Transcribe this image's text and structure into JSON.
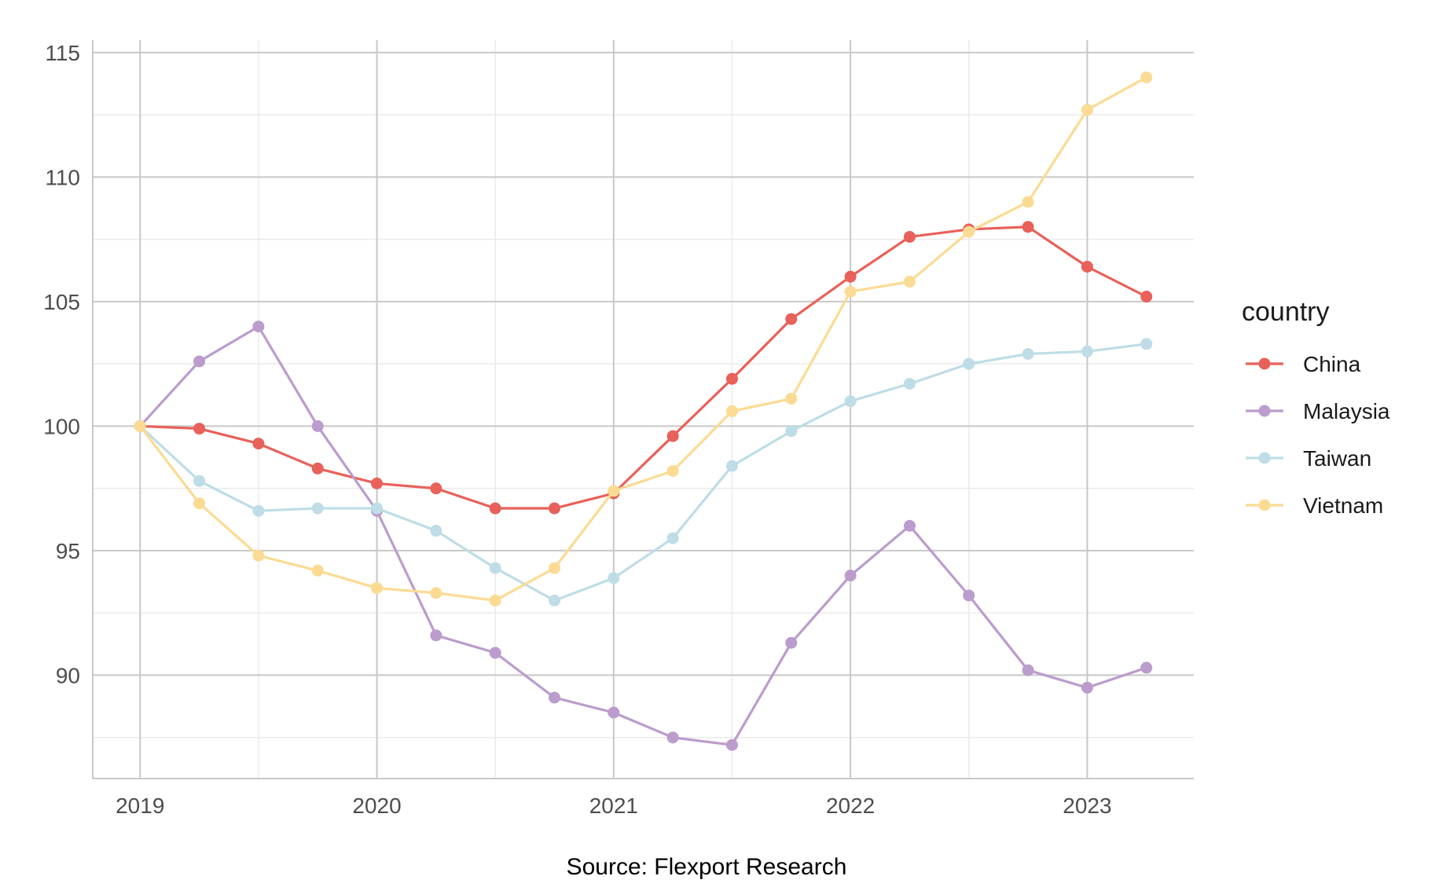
{
  "chart_data": {
    "type": "line",
    "title": "",
    "xlabel": "",
    "ylabel": "",
    "xlim": [
      2018.8,
      2023.45
    ],
    "ylim": [
      85.85,
      115.5
    ],
    "x_ticks": [
      {
        "value": 2019,
        "label": "2019"
      },
      {
        "value": 2020,
        "label": "2020"
      },
      {
        "value": 2021,
        "label": "2021"
      },
      {
        "value": 2022,
        "label": "2022"
      },
      {
        "value": 2023,
        "label": "2023"
      }
    ],
    "y_ticks": [
      {
        "value": 90,
        "label": "90"
      },
      {
        "value": 95,
        "label": "95"
      },
      {
        "value": 100,
        "label": "100"
      },
      {
        "value": 105,
        "label": "105"
      },
      {
        "value": 110,
        "label": "110"
      },
      {
        "value": 115,
        "label": "115"
      }
    ],
    "grid": true,
    "legend": {
      "title": "country",
      "position": "right"
    },
    "x": [
      2019.0,
      2019.25,
      2019.5,
      2019.75,
      2020.0,
      2020.25,
      2020.5,
      2020.75,
      2021.0,
      2021.25,
      2021.5,
      2021.75,
      2022.0,
      2022.25,
      2022.5,
      2022.75,
      2023.0,
      2023.25
    ],
    "series": [
      {
        "name": "China",
        "color": "#e8615a",
        "values": [
          100.0,
          99.9,
          99.3,
          98.3,
          97.7,
          97.5,
          96.7,
          96.7,
          97.3,
          99.6,
          101.9,
          104.3,
          106.0,
          107.6,
          107.9,
          108.0,
          106.4,
          105.2
        ]
      },
      {
        "name": "Malaysia",
        "color": "#bb9ccc",
        "values": [
          100.0,
          102.6,
          104.0,
          100.0,
          96.6,
          91.6,
          90.9,
          89.1,
          88.5,
          87.5,
          87.2,
          91.3,
          94.0,
          96.0,
          93.2,
          90.2,
          89.5,
          90.3
        ]
      },
      {
        "name": "Taiwan",
        "color": "#bedde6",
        "values": [
          100.0,
          97.8,
          96.6,
          96.7,
          96.7,
          95.8,
          94.3,
          93.0,
          93.9,
          95.5,
          98.4,
          99.8,
          101.0,
          101.7,
          102.5,
          102.9,
          103.0,
          103.3
        ]
      },
      {
        "name": "Vietnam",
        "color": "#fbdb93",
        "values": [
          100.0,
          96.9,
          94.8,
          94.2,
          93.5,
          93.3,
          93.0,
          94.3,
          97.4,
          98.2,
          100.6,
          101.1,
          105.4,
          105.8,
          107.8,
          109.0,
          112.7,
          114.0
        ]
      }
    ]
  },
  "caption": "Source: Flexport Research"
}
